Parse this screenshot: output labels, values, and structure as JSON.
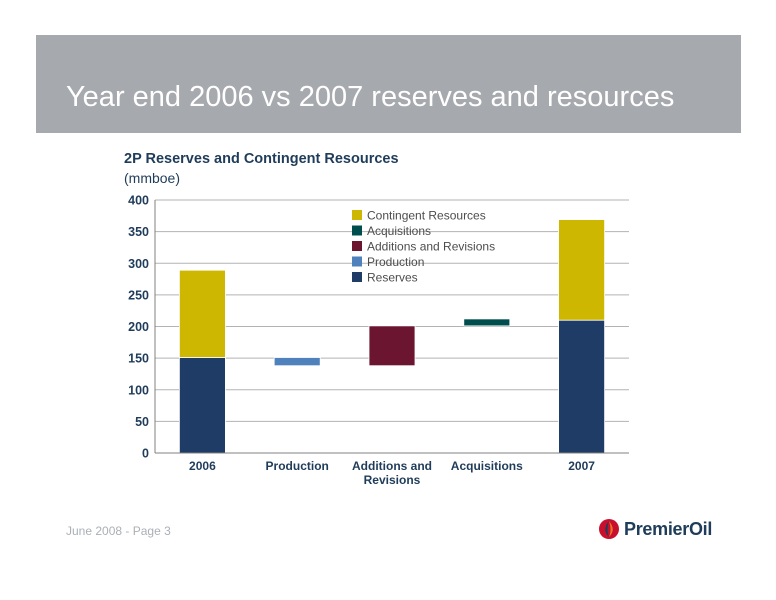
{
  "slide": {
    "title": "Year end 2006 vs 2007 reserves and resources",
    "footer": "June 2008 - Page 3",
    "logo_text": "PremierOil"
  },
  "colors": {
    "reserves": "#1f3c66",
    "production": "#4f81bd",
    "additions": "#6b1530",
    "acquisitions": "#004d4d",
    "contingent": "#cdb700",
    "title_bar": "#a6a9ad",
    "text_dark": "#1f3c5a"
  },
  "chart_data": {
    "type": "bar",
    "title": "2P Reserves and Contingent Resources",
    "subtitle": "(mmboe)",
    "categories": [
      "2006",
      "Production",
      "Additions and Revisions",
      "Acquisitions",
      "2007"
    ],
    "category_labels": [
      [
        "2006"
      ],
      [
        "Production"
      ],
      [
        "Additions and",
        "Revisions"
      ],
      [
        "Acquisitions"
      ],
      [
        "2007"
      ]
    ],
    "ylim": [
      0,
      400
    ],
    "yticks": [
      0,
      50,
      100,
      150,
      200,
      250,
      300,
      350,
      400
    ],
    "grid": true,
    "legend_placement": "top-center",
    "legend": [
      "Contingent Resources",
      "Acquisitions",
      "Additions and Revisions",
      "Production",
      "Reserves"
    ],
    "bars": [
      {
        "category": "2006",
        "segments": [
          {
            "series": "Reserves",
            "from": 0,
            "to": 151
          },
          {
            "series": "Contingent Resources",
            "from": 151,
            "to": 289
          }
        ]
      },
      {
        "category": "Production",
        "segments": [
          {
            "series": "Production",
            "from": 138,
            "to": 151
          }
        ]
      },
      {
        "category": "Additions and Revisions",
        "segments": [
          {
            "series": "Additions and Revisions",
            "from": 138,
            "to": 201
          }
        ]
      },
      {
        "category": "Acquisitions",
        "segments": [
          {
            "series": "Acquisitions",
            "from": 201,
            "to": 212
          }
        ]
      },
      {
        "category": "2007",
        "segments": [
          {
            "series": "Reserves",
            "from": 0,
            "to": 210
          },
          {
            "series": "Contingent Resources",
            "from": 210,
            "to": 369
          }
        ]
      }
    ]
  }
}
